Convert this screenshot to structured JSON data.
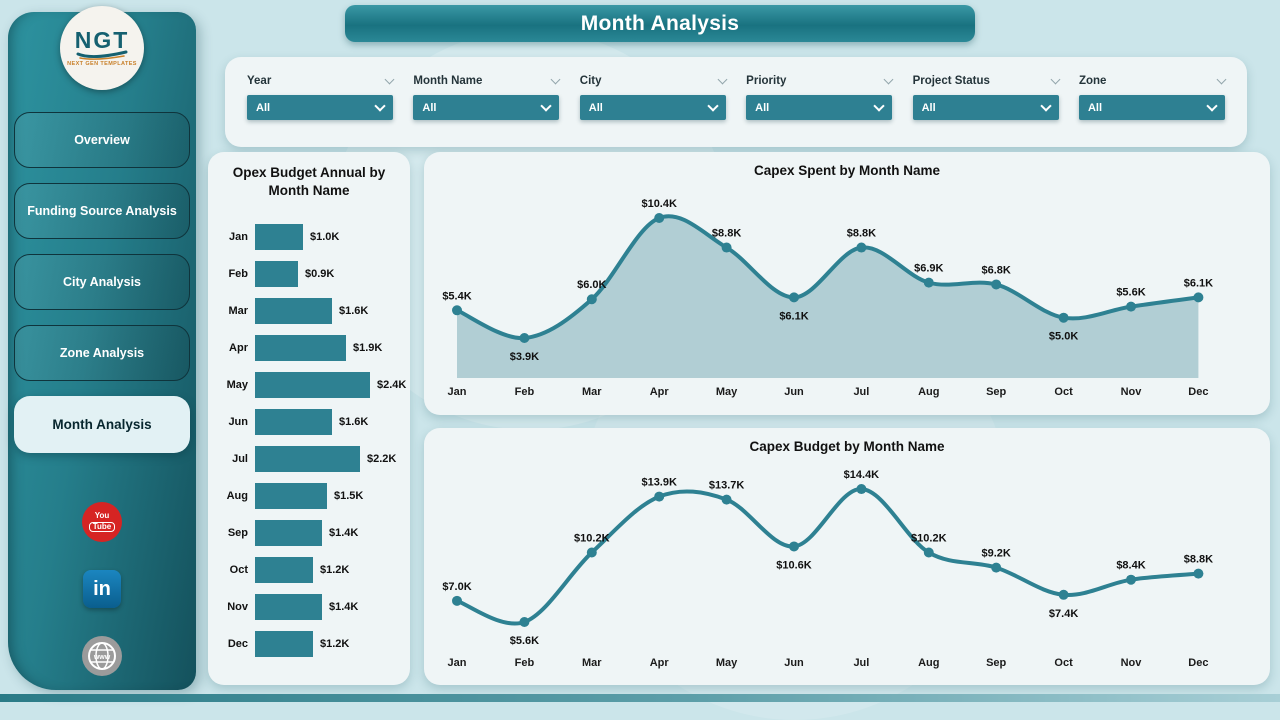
{
  "page": {
    "title": "Month Analysis"
  },
  "sidebar": {
    "logo": {
      "text": "NGT",
      "subtext": "NEXT GEN TEMPLATES"
    },
    "items": [
      {
        "label": "Overview",
        "active": false
      },
      {
        "label": "Funding Source Analysis",
        "active": false
      },
      {
        "label": "City Analysis",
        "active": false
      },
      {
        "label": "Zone Analysis",
        "active": false
      },
      {
        "label": "Month Analysis",
        "active": true
      }
    ],
    "social": {
      "youtube": {
        "line1": "You",
        "line2": "Tube"
      },
      "linkedin": {
        "text": "in"
      },
      "website": {
        "text": "www"
      }
    }
  },
  "filters": [
    {
      "label": "Year",
      "value": "All"
    },
    {
      "label": "Month Name",
      "value": "All"
    },
    {
      "label": "City",
      "value": "All"
    },
    {
      "label": "Priority",
      "value": "All"
    },
    {
      "label": "Project Status",
      "value": "All"
    },
    {
      "label": "Zone",
      "value": "All"
    }
  ],
  "colors": {
    "teal_primary": "#2e8192",
    "sidebar_light": "#2d93a0",
    "sidebar_dark": "#14515c",
    "page_bg": "#cbe5ea",
    "card_bg": "#eff5f6",
    "youtube_red": "#d62423",
    "linkedin_blue": "#0e76a8"
  },
  "chart_data": [
    {
      "type": "bar",
      "orientation": "horizontal",
      "title": "Opex Budget Annual by Month Name",
      "categories": [
        "Jan",
        "Feb",
        "Mar",
        "Apr",
        "May",
        "Jun",
        "Jul",
        "Aug",
        "Sep",
        "Oct",
        "Nov",
        "Dec"
      ],
      "values": [
        1.0,
        0.9,
        1.6,
        1.9,
        2.4,
        1.6,
        2.2,
        1.5,
        1.4,
        1.2,
        1.4,
        1.2
      ],
      "labels": [
        "$1.0K",
        "$0.9K",
        "$1.6K",
        "$1.9K",
        "$2.4K",
        "$1.6K",
        "$2.2K",
        "$1.5K",
        "$1.4K",
        "$1.2K",
        "$1.4K",
        "$1.2K"
      ],
      "xlim": [
        0,
        2.4
      ],
      "unit": "K"
    },
    {
      "type": "area",
      "title": "Capex Spent by Month Name",
      "categories": [
        "Jan",
        "Feb",
        "Mar",
        "Apr",
        "May",
        "Jun",
        "Jul",
        "Aug",
        "Sep",
        "Oct",
        "Nov",
        "Dec"
      ],
      "values": [
        5.4,
        3.9,
        6.0,
        10.4,
        8.8,
        6.1,
        8.8,
        6.9,
        6.8,
        5.0,
        5.6,
        6.1
      ],
      "labels": [
        "$5.4K",
        "$3.9K",
        "$6.0K",
        "$10.4K",
        "$8.8K",
        "$6.1K",
        "$8.8K",
        "$6.9K",
        "$6.8K",
        "$5.0K",
        "$5.6K",
        "$6.1K"
      ],
      "label_below": [
        "Feb",
        "Jun",
        "Oct"
      ],
      "ylim": [
        3.5,
        11
      ],
      "grid": false,
      "legend": "none",
      "unit": "K"
    },
    {
      "type": "line",
      "title": "Capex Budget by Month Name",
      "categories": [
        "Jan",
        "Feb",
        "Mar",
        "Apr",
        "May",
        "Jun",
        "Jul",
        "Aug",
        "Sep",
        "Oct",
        "Nov",
        "Dec"
      ],
      "values": [
        7.0,
        5.6,
        10.2,
        13.9,
        13.7,
        10.6,
        14.4,
        10.2,
        9.2,
        7.4,
        8.4,
        8.8
      ],
      "labels": [
        "$7.0K",
        "$5.6K",
        "$10.2K",
        "$13.9K",
        "$13.7K",
        "$10.6K",
        "$14.4K",
        "$10.2K",
        "$9.2K",
        "$7.4K",
        "$8.4K",
        "$8.8K"
      ],
      "label_below": [
        "Feb",
        "Jun",
        "Oct"
      ],
      "ylim": [
        5,
        15
      ],
      "grid": false,
      "legend": "none",
      "unit": "K"
    }
  ]
}
